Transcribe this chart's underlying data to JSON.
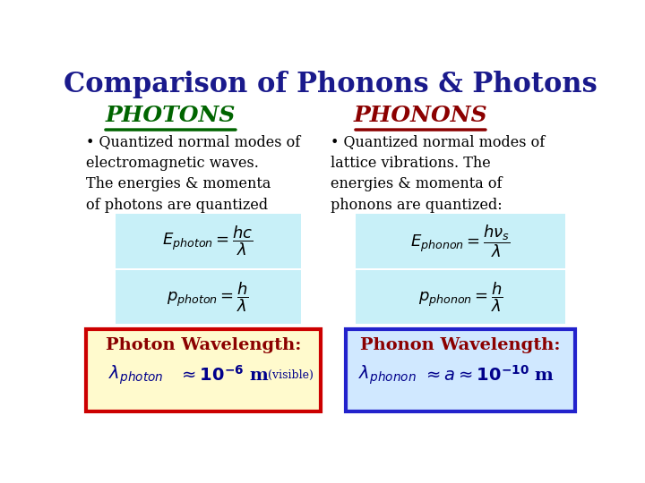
{
  "title": "Comparison of Phonons & Photons",
  "title_color": "#1a1a8c",
  "title_fontsize": 22,
  "photons_label": "PHOTONS",
  "photons_color": "#006400",
  "phonons_label": "PHONONS",
  "phonons_color": "#8b0000",
  "photons_text": "Quantized normal modes of\nelectromagnetic waves.\nThe energies & momenta\nof photons are quantized",
  "phonons_text": "Quantized normal modes of\nlattice vibrations. The\nenergies & momenta of\nphonons are quantized:",
  "box_left_bg": "#fffacd",
  "box_left_border": "#cc0000",
  "box_right_bg": "#d0e8ff",
  "box_right_border": "#2222cc",
  "box_left_title": "Photon Wavelength:",
  "box_right_title": "Phonon Wavelength:",
  "formula_bg": "#c8f0f8",
  "background_color": "#ffffff",
  "text_color": "#000000",
  "box_title_color": "#8b0000",
  "box_text_color": "#00008b"
}
